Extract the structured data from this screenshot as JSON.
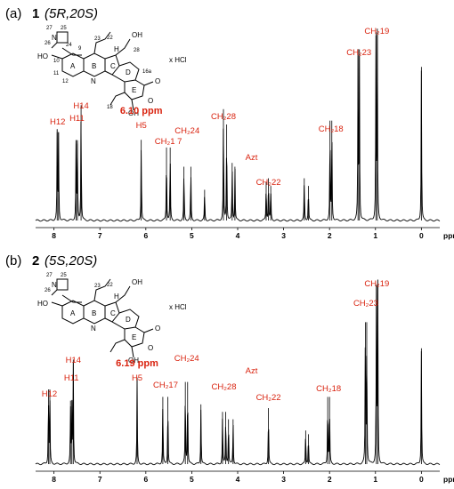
{
  "panels": [
    {
      "label": "(a)",
      "compound_number": "1",
      "stereo": "(5R,20S)",
      "salt": "x HCl",
      "chart_data": {
        "type": "nmr-spectrum",
        "x_unit": "ppm",
        "x_range": [
          8.4,
          -0.4
        ],
        "x_ticks": [
          8,
          7,
          6,
          5,
          4,
          3,
          2,
          1,
          0
        ],
        "x_reversed": true,
        "y_range": [
          0,
          1
        ],
        "peaks": [
          {
            "shift": 7.93,
            "height": 0.46
          },
          {
            "shift": 7.9,
            "height": 0.46
          },
          {
            "shift": 7.52,
            "height": 0.4
          },
          {
            "shift": 7.49,
            "height": 0.4
          },
          {
            "shift": 7.41,
            "height": 0.6
          },
          {
            "shift": 6.1,
            "height": 0.42
          },
          {
            "shift": 5.55,
            "height": 0.38
          },
          {
            "shift": 5.47,
            "height": 0.38
          },
          {
            "shift": 5.17,
            "height": 0.28
          },
          {
            "shift": 5.02,
            "height": 0.28
          },
          {
            "shift": 4.72,
            "height": 0.16
          },
          {
            "shift": 4.31,
            "height": 0.58
          },
          {
            "shift": 4.24,
            "height": 0.5
          },
          {
            "shift": 4.12,
            "height": 0.3
          },
          {
            "shift": 4.06,
            "height": 0.28
          },
          {
            "shift": 3.38,
            "height": 0.2
          },
          {
            "shift": 3.33,
            "height": 0.22
          },
          {
            "shift": 3.28,
            "height": 0.18
          },
          {
            "shift": 2.55,
            "height": 0.22
          },
          {
            "shift": 2.46,
            "height": 0.18
          },
          {
            "shift": 1.99,
            "height": 0.52
          },
          {
            "shift": 1.95,
            "height": 0.52
          },
          {
            "shift": 1.38,
            "height": 0.86
          },
          {
            "shift": 1.35,
            "height": 0.86
          },
          {
            "shift": 0.99,
            "height": 0.98
          },
          {
            "shift": 0.96,
            "height": 0.98
          },
          {
            "shift": 0.0,
            "height": 0.8
          }
        ],
        "annotations": [
          {
            "label": "H12",
            "shift": 7.92
          },
          {
            "label": "H11",
            "shift": 7.5
          },
          {
            "label": "H14",
            "shift": 7.41
          },
          {
            "label": "6.10 ppm",
            "shift": 6.1
          },
          {
            "label": "H5",
            "shift": 6.1
          },
          {
            "label": "CH₂1 7",
            "shift": 5.51
          },
          {
            "label": "CH₂24",
            "shift": 5.1
          },
          {
            "label": "CH₂28",
            "shift": 4.31
          },
          {
            "label": "Azt",
            "shift": 3.7
          },
          {
            "label": "CH₂22",
            "shift": 3.33
          },
          {
            "label": "CH₂18",
            "shift": 1.97
          },
          {
            "label": "CH₂23",
            "shift": 1.36
          },
          {
            "label": "CH₂19",
            "shift": 0.97
          }
        ]
      }
    },
    {
      "label": "(b)",
      "compound_number": "2",
      "stereo": "(5S,20S)",
      "salt": "x HCl",
      "chart_data": {
        "type": "nmr-spectrum",
        "x_unit": "ppm",
        "x_range": [
          8.4,
          -0.4
        ],
        "x_ticks": [
          8,
          7,
          6,
          5,
          4,
          3,
          2,
          1,
          0
        ],
        "x_reversed": true,
        "y_range": [
          0,
          1
        ],
        "peaks": [
          {
            "shift": 8.12,
            "height": 0.4
          },
          {
            "shift": 8.09,
            "height": 0.4
          },
          {
            "shift": 7.64,
            "height": 0.34
          },
          {
            "shift": 7.61,
            "height": 0.34
          },
          {
            "shift": 7.58,
            "height": 0.56
          },
          {
            "shift": 6.19,
            "height": 0.46
          },
          {
            "shift": 5.63,
            "height": 0.36
          },
          {
            "shift": 5.52,
            "height": 0.36
          },
          {
            "shift": 5.14,
            "height": 0.44
          },
          {
            "shift": 5.09,
            "height": 0.44
          },
          {
            "shift": 4.8,
            "height": 0.32
          },
          {
            "shift": 4.33,
            "height": 0.28
          },
          {
            "shift": 4.26,
            "height": 0.28
          },
          {
            "shift": 4.2,
            "height": 0.24
          },
          {
            "shift": 4.1,
            "height": 0.24
          },
          {
            "shift": 3.33,
            "height": 0.3
          },
          {
            "shift": 2.52,
            "height": 0.18
          },
          {
            "shift": 2.46,
            "height": 0.16
          },
          {
            "shift": 2.04,
            "height": 0.36
          },
          {
            "shift": 2.0,
            "height": 0.36
          },
          {
            "shift": 1.22,
            "height": 0.76
          },
          {
            "shift": 1.19,
            "height": 0.76
          },
          {
            "shift": 0.98,
            "height": 0.96
          },
          {
            "shift": 0.95,
            "height": 0.96
          },
          {
            "shift": 0.0,
            "height": 0.62
          }
        ],
        "annotations": [
          {
            "label": "H12",
            "shift": 8.1
          },
          {
            "label": "H11",
            "shift": 7.62
          },
          {
            "label": "H14",
            "shift": 7.58
          },
          {
            "label": "6.19 ppm",
            "shift": 6.19
          },
          {
            "label": "H5",
            "shift": 6.19
          },
          {
            "label": "CH₂17",
            "shift": 5.57
          },
          {
            "label": "CH₂24",
            "shift": 5.11
          },
          {
            "label": "CH₂28",
            "shift": 4.3
          },
          {
            "label": "Azt",
            "shift": 3.7
          },
          {
            "label": "CH₂22",
            "shift": 3.33
          },
          {
            "label": "CH₂18",
            "shift": 2.02
          },
          {
            "label": "CH₂23",
            "shift": 1.21
          },
          {
            "label": "CH₂19",
            "shift": 0.97
          }
        ]
      }
    }
  ],
  "structure_labels": {
    "atoms": [
      "25",
      "27",
      "26",
      "N",
      "24",
      "23",
      "22",
      "HO",
      "10",
      "9",
      "11",
      "12",
      "A",
      "B",
      "C",
      "D",
      "E",
      "8",
      "7",
      "6",
      "5",
      "N",
      "H",
      "OH",
      "28",
      "13",
      "N",
      "1",
      "2",
      "3",
      "16a",
      "16",
      "17",
      "14",
      "15",
      "O",
      "18",
      "19",
      "20",
      "OH",
      "O",
      "21",
      "O"
    ],
    "rings": [
      "A",
      "B",
      "C",
      "D",
      "E"
    ]
  },
  "colors": {
    "annotation": "#d9230f",
    "spectrum": "#000000"
  }
}
